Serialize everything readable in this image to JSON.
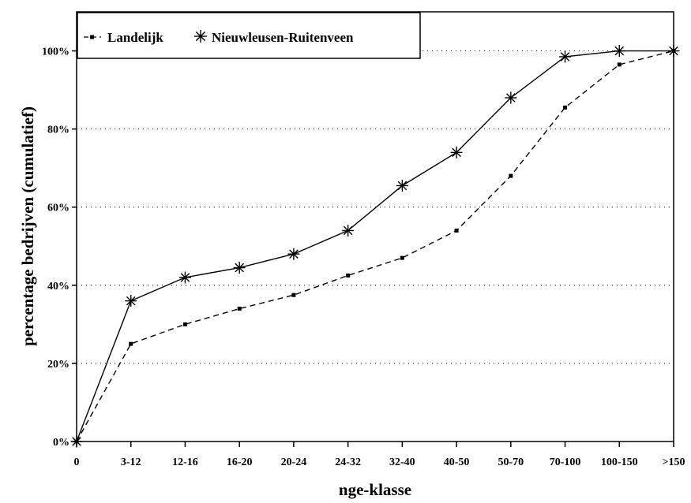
{
  "chart_data": {
    "type": "line",
    "xlabel": "nge-klasse",
    "ylabel": "percentage bedrijven (cumulatief)",
    "categories": [
      "0",
      "3-12",
      "12-16",
      "16-20",
      "20-24",
      "24-32",
      "32-40",
      "40-50",
      "50-70",
      "70-100",
      "100-150",
      ">150"
    ],
    "y_ticks": [
      "0%",
      "20%",
      "40%",
      "60%",
      "80%",
      "100%"
    ],
    "ylim": [
      0,
      110
    ],
    "grid": "horizontal dotted",
    "legend_placement": "top-left",
    "series": [
      {
        "name": "Landelijk",
        "style": "dashed",
        "marker": "square",
        "values": [
          0,
          25,
          30,
          34,
          37.5,
          42.5,
          47,
          54,
          68,
          85.5,
          96.5,
          100
        ]
      },
      {
        "name": "Nieuwleusen-Ruitenveen",
        "style": "solid",
        "marker": "star",
        "values": [
          0,
          36,
          42,
          44.5,
          48,
          54,
          65.5,
          74,
          88,
          98.5,
          100,
          100
        ]
      }
    ]
  }
}
